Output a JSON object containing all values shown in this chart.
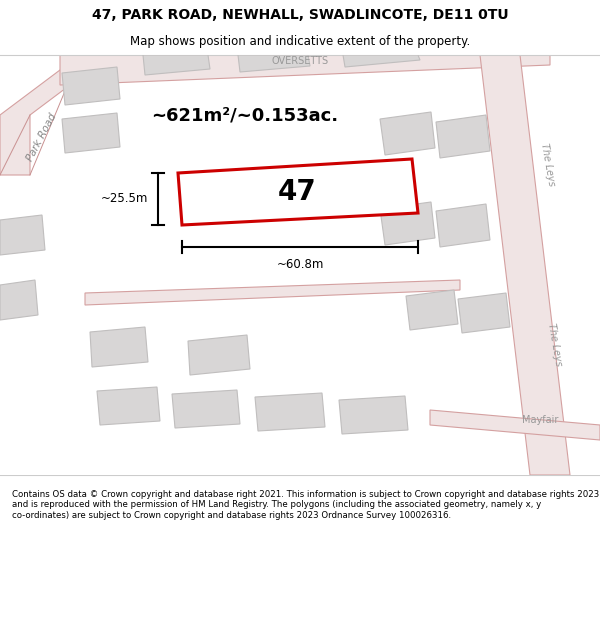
{
  "title": "47, PARK ROAD, NEWHALL, SWADLINCOTE, DE11 0TU",
  "subtitle": "Map shows position and indicative extent of the property.",
  "footer": "Contains OS data © Crown copyright and database right 2021. This information is subject to Crown copyright and database rights 2023 and is reproduced with the permission of HM Land Registry. The polygons (including the associated geometry, namely x, y co-ordinates) are subject to Crown copyright and database rights 2023 Ordnance Survey 100026316.",
  "area_text": "~621m²/~0.153ac.",
  "width_text": "~60.8m",
  "height_text": "~25.5m",
  "number_text": "47",
  "bg_color": "#f2f0f0",
  "white": "#ffffff",
  "road_fill": "#f0e4e4",
  "road_edge": "#d4a0a0",
  "building_fill": "#d8d6d6",
  "building_edge": "#c0bebe",
  "highlight_color": "#e8000000",
  "title_fontsize": 10,
  "subtitle_fontsize": 8.5,
  "footer_fontsize": 6.2
}
